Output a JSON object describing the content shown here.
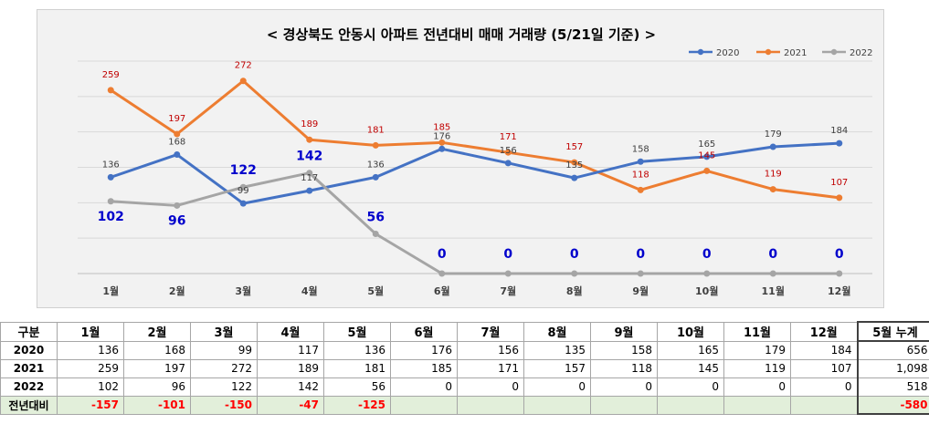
{
  "chart_data": {
    "type": "line",
    "title": "< 경상북도 안동시  아파트 전년대비 매매 거래량 (5/21일 기준) >",
    "categories": [
      "1월",
      "2월",
      "3월",
      "4월",
      "5월",
      "6월",
      "7월",
      "8월",
      "9월",
      "10월",
      "11월",
      "12월"
    ],
    "ylim": [
      0,
      300
    ],
    "grid": true,
    "legend": "top-right",
    "series": [
      {
        "name": "2020",
        "color": "#4472c4",
        "values": [
          136,
          168,
          99,
          117,
          136,
          176,
          156,
          135,
          158,
          165,
          179,
          184
        ]
      },
      {
        "name": "2021",
        "color": "#ed7d31",
        "values": [
          259,
          197,
          272,
          189,
          181,
          185,
          171,
          157,
          118,
          145,
          119,
          107
        ]
      },
      {
        "name": "2022",
        "color": "#a5a5a5",
        "values": [
          102,
          96,
          122,
          142,
          56,
          0,
          0,
          0,
          0,
          0,
          0,
          0
        ]
      }
    ]
  },
  "table": {
    "headers": [
      "구분",
      "1월",
      "2월",
      "3월",
      "4월",
      "5월",
      "6월",
      "7월",
      "8월",
      "9월",
      "10월",
      "11월",
      "12월",
      "5월 누계"
    ],
    "rows": [
      {
        "label": "2020",
        "cells": [
          "136",
          "168",
          "99",
          "117",
          "136",
          "176",
          "156",
          "135",
          "158",
          "165",
          "179",
          "184",
          "656"
        ]
      },
      {
        "label": "2021",
        "cells": [
          "259",
          "197",
          "272",
          "189",
          "181",
          "185",
          "171",
          "157",
          "118",
          "145",
          "119",
          "107",
          "1,098"
        ]
      },
      {
        "label": "2022",
        "cells": [
          "102",
          "96",
          "122",
          "142",
          "56",
          "0",
          "0",
          "0",
          "0",
          "0",
          "0",
          "0",
          "518"
        ]
      },
      {
        "label": "전년대비",
        "cells": [
          "-157",
          "-101",
          "-150",
          "-47",
          "-125",
          "",
          "",
          "",
          "",
          "",
          "",
          "",
          "-580"
        ]
      }
    ]
  }
}
